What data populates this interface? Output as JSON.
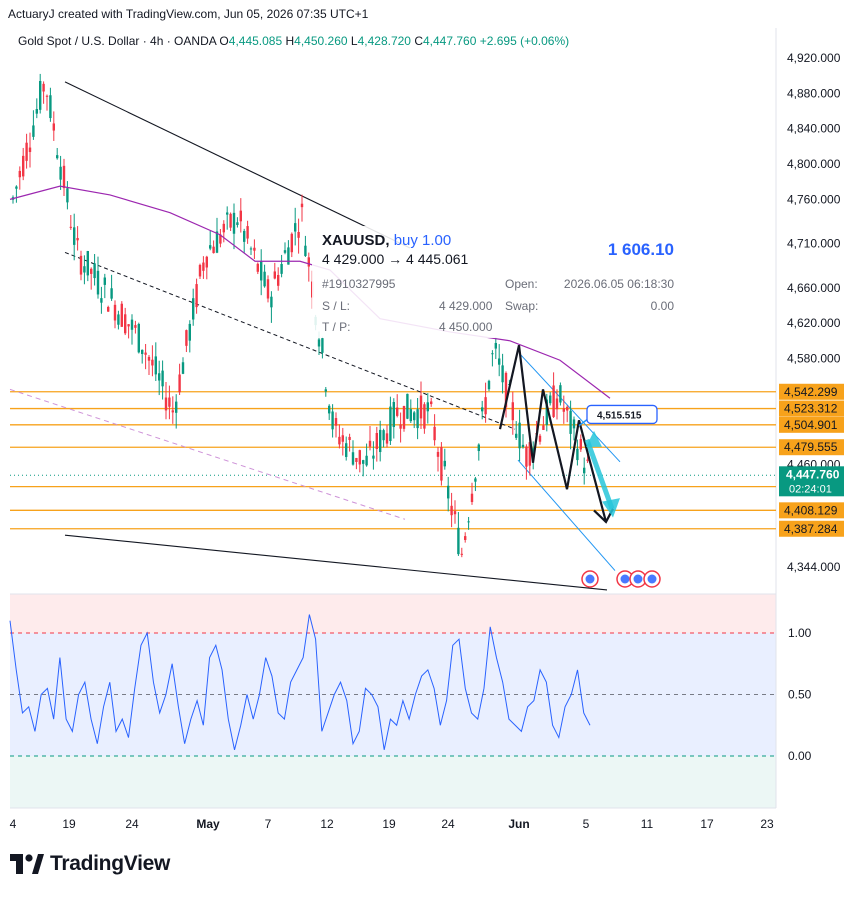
{
  "header": {
    "credit": "ActuaryJ created with TradingView.com, Jun 05, 2026 07:35 UTC+1",
    "symbol_line": "Gold Spot / U.S. Dollar · 4h · OANDA",
    "ohlc": {
      "o_label": "O",
      "o": "4,445.085",
      "h_label": "H",
      "h": "4,450.260",
      "l_label": "L",
      "l": "4,428.720",
      "c_label": "C",
      "c": "4,447.760",
      "change": "+2.695 (+0.06%)"
    }
  },
  "trade_box": {
    "symbol": "XAUUSD,",
    "side": "buy 1.00",
    "profit": "1 606.10",
    "prices": "4 429.000 → 4 445.061",
    "order_id": "#1910327995",
    "open_label": "Open:",
    "open_value": "2026.06.05 06:18:30",
    "sl_label": "S / L:",
    "sl_value": "4 429.000",
    "swap_label": "Swap:",
    "swap_value": "0.00",
    "tp_label": "T / P:",
    "tp_value": "4 450.000"
  },
  "annotation": {
    "target_label": "4,515.515"
  },
  "brand": {
    "name": "TradingView"
  },
  "colors": {
    "up": "#089981",
    "down": "#f23645",
    "level": "#f7a21b",
    "ma": "#9c27b0",
    "oscillator": "#2962ff",
    "channel": "#2196f3",
    "arrow": "#26c6da"
  },
  "chart_data": [
    {
      "type": "candlestick",
      "title": "Gold Spot / U.S. Dollar · 4h · OANDA",
      "ylim": [
        4316,
        4942
      ],
      "y_ticks": [
        "4,920.000",
        "4,880.000",
        "4,840.000",
        "4,800.000",
        "4,760.000",
        "4,710.000",
        "4,660.000",
        "4,620.000",
        "4,580.000",
        "4,460.000",
        "4,344.000"
      ],
      "x_ticks": [
        "4",
        "19",
        "24",
        "May",
        "7",
        "12",
        "19",
        "24",
        "Jun",
        "5",
        "11",
        "17",
        "23"
      ],
      "price_levels": [
        {
          "label": "4,542.299",
          "value": 4542.299
        },
        {
          "label": "4,523.312",
          "value": 4523.312
        },
        {
          "label": "4,504.901",
          "value": 4504.901
        },
        {
          "label": "4,479.555",
          "value": 4479.555
        },
        {
          "label": "4,434.936",
          "value": 4434.936
        },
        {
          "label": "4,408.129",
          "value": 4408.129
        },
        {
          "label": "4,387.284",
          "value": 4387.284
        }
      ],
      "last_price": {
        "label": "4,447.760",
        "value": 4447.76,
        "countdown": "02:24:01"
      },
      "price_path": [
        [
          "19",
          4760
        ],
        [
          "19",
          4895
        ],
        [
          "24",
          4700
        ],
        [
          "24",
          4650
        ],
        [
          "May",
          4600
        ],
        [
          "May",
          4520
        ],
        [
          "7",
          4700
        ],
        [
          "7",
          4740
        ],
        [
          "12",
          4650
        ],
        [
          "12",
          4745
        ],
        [
          "19",
          4500
        ],
        [
          "19",
          4460
        ],
        [
          "24",
          4520
        ],
        [
          "24",
          4520
        ],
        [
          "Jun",
          4360
        ],
        [
          "Jun",
          4590
        ],
        [
          "5",
          4470
        ],
        [
          "5",
          4540
        ],
        [
          "5",
          4447.76
        ]
      ]
    },
    {
      "type": "line",
      "series": [
        {
          "values": [
            1.1,
            0.7,
            0.35,
            0.4,
            0.2,
            0.5,
            0.55,
            0.3,
            0.8,
            0.3,
            0.2,
            0.5,
            0.6,
            0.3,
            0.1,
            0.4,
            0.6,
            0.2,
            0.3,
            0.15,
            0.55,
            0.9,
            1.0,
            0.6,
            0.35,
            0.5,
            0.75,
            0.4,
            0.1,
            0.3,
            0.45,
            0.25,
            0.8,
            0.9,
            0.7,
            0.3,
            0.05,
            0.25,
            0.5,
            0.3,
            0.5,
            0.8,
            0.65,
            0.35,
            0.3,
            0.6,
            0.7,
            0.8,
            1.15,
            0.95,
            0.2,
            0.35,
            0.5,
            0.6,
            0.45,
            0.1,
            0.2,
            0.55,
            0.5,
            0.4,
            0.05,
            0.3,
            0.25,
            0.45,
            0.3,
            0.5,
            0.65,
            0.7,
            0.55,
            0.25,
            0.45,
            0.9,
            0.95,
            0.55,
            0.35,
            0.3,
            0.55,
            1.05,
            0.8,
            0.6,
            0.3,
            0.25,
            0.2,
            0.4,
            0.45,
            0.7,
            0.6,
            0.25,
            0.15,
            0.4,
            0.5,
            0.7,
            0.35,
            0.25
          ]
        }
      ],
      "ylim": [
        -0.43,
        1.15
      ],
      "y_ticks": [
        "1.00",
        "0.50",
        "0.00"
      ],
      "reference_lines": [
        1.0,
        0.5,
        0.0
      ]
    }
  ]
}
